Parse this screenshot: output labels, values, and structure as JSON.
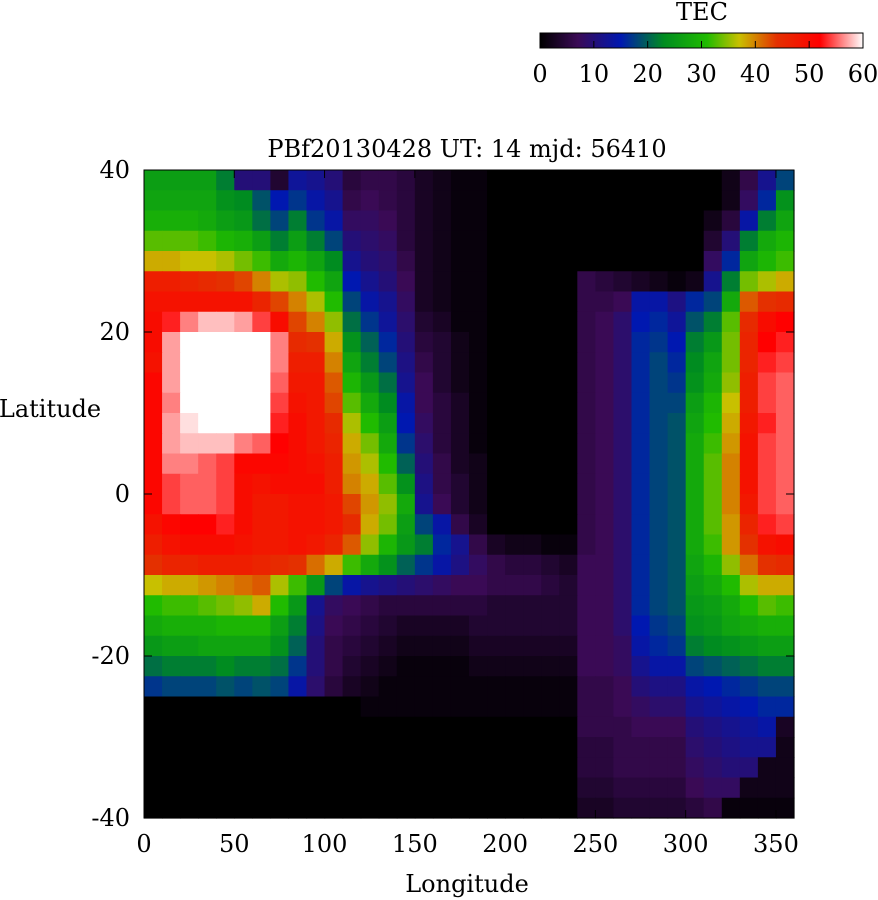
{
  "chart_data": {
    "type": "heatmap",
    "title": "PBf20130428  UT: 14  mjd: 56410",
    "xlabel": "Longitude",
    "ylabel": "Latitude",
    "xlim": [
      0,
      360
    ],
    "ylim": [
      -40,
      40
    ],
    "xticks": [
      "0",
      "50",
      "100",
      "150",
      "200",
      "250",
      "300",
      "350"
    ],
    "yticks": [
      "40",
      "20",
      "0",
      "-20",
      "-40"
    ],
    "colorbar": {
      "label": "TEC",
      "range": [
        0,
        60
      ],
      "ticks": [
        "0",
        "10",
        "20",
        "30",
        "40",
        "50",
        "60"
      ],
      "stops": [
        {
          "value": 0,
          "color": "#000000"
        },
        {
          "value": 7,
          "color": "#3a0a55"
        },
        {
          "value": 15,
          "color": "#0018b0"
        },
        {
          "value": 23,
          "color": "#008c20"
        },
        {
          "value": 31,
          "color": "#20bb00"
        },
        {
          "value": 37,
          "color": "#c8c000"
        },
        {
          "value": 44,
          "color": "#e43000"
        },
        {
          "value": 52,
          "color": "#ff0000"
        },
        {
          "value": 60,
          "color": "#ffffff"
        }
      ]
    },
    "grid": {
      "lon_step": 10,
      "lat_step": 2.5,
      "lon_centers": [
        5,
        15,
        25,
        35,
        45,
        55,
        65,
        75,
        85,
        95,
        105,
        115,
        125,
        135,
        145,
        155,
        165,
        175,
        185,
        195,
        205,
        215,
        225,
        235,
        245,
        255,
        265,
        275,
        285,
        295,
        305,
        315,
        325,
        335,
        345,
        355
      ],
      "lat_centers": [
        38.75,
        36.25,
        33.75,
        31.25,
        28.75,
        26.25,
        23.75,
        21.25,
        18.75,
        16.25,
        13.75,
        11.25,
        8.75,
        6.25,
        3.75,
        1.25,
        -1.25,
        -3.75,
        -6.25,
        -8.75,
        -11.25,
        -13.75,
        -16.25,
        -18.75,
        -21.25,
        -23.75,
        -26.25,
        -28.75,
        -31.25,
        -33.75,
        -36.25,
        -38.75
      ],
      "tec": [
        [
          26,
          26,
          26,
          26,
          22,
          10,
          10,
          4,
          13,
          12,
          10,
          5,
          6,
          6,
          5,
          3,
          2,
          1,
          1,
          0,
          0,
          0,
          0,
          0,
          0,
          0,
          0,
          0,
          0,
          0,
          0,
          0,
          2,
          6,
          12,
          18
        ],
        [
          27,
          27,
          27,
          27,
          24,
          23,
          19,
          15,
          17,
          14,
          12,
          6,
          7,
          6,
          5,
          3,
          2,
          1,
          1,
          0,
          0,
          0,
          0,
          0,
          0,
          0,
          0,
          0,
          0,
          0,
          0,
          0,
          2,
          8,
          16,
          24
        ],
        [
          29,
          29,
          29,
          28,
          26,
          25,
          21,
          18,
          22,
          17,
          14,
          8,
          8,
          7,
          5,
          3,
          2,
          1,
          1,
          0,
          0,
          0,
          0,
          0,
          0,
          0,
          0,
          0,
          0,
          0,
          0,
          2,
          5,
          14,
          22,
          27
        ],
        [
          33,
          33,
          33,
          32,
          30,
          29,
          26,
          22,
          26,
          22,
          18,
          10,
          9,
          8,
          5,
          3,
          2,
          1,
          1,
          0,
          0,
          0,
          0,
          0,
          0,
          0,
          0,
          0,
          0,
          0,
          0,
          4,
          10,
          22,
          28,
          30
        ],
        [
          38,
          38,
          37,
          37,
          36,
          34,
          32,
          28,
          30,
          27,
          23,
          12,
          10,
          9,
          6,
          3,
          2,
          1,
          1,
          0,
          0,
          0,
          0,
          0,
          0,
          0,
          0,
          0,
          0,
          0,
          0,
          8,
          16,
          27,
          30,
          32
        ],
        [
          47,
          47,
          46,
          45,
          44,
          43,
          40,
          36,
          35,
          31,
          27,
          15,
          12,
          10,
          7,
          3,
          2,
          1,
          1,
          0,
          0,
          0,
          0,
          0,
          6,
          5,
          4,
          3,
          2,
          1,
          2,
          12,
          22,
          34,
          36,
          38
        ],
        [
          49,
          49,
          49,
          49,
          49,
          49,
          46,
          43,
          40,
          36,
          31,
          18,
          14,
          12,
          8,
          3,
          2,
          1,
          1,
          0,
          0,
          0,
          0,
          0,
          6,
          6,
          7,
          14,
          14,
          11,
          16,
          18,
          28,
          42,
          44,
          45
        ],
        [
          50,
          53,
          56,
          58,
          58,
          57,
          54,
          50,
          43,
          40,
          35,
          21,
          17,
          13,
          9,
          4,
          3,
          1,
          1,
          0,
          0,
          0,
          0,
          0,
          6,
          7,
          9,
          15,
          16,
          13,
          19,
          22,
          33,
          45,
          50,
          52
        ],
        [
          50,
          57,
          60,
          60,
          60,
          60,
          60,
          56,
          45,
          44,
          38,
          24,
          20,
          16,
          10,
          5,
          4,
          2,
          1,
          0,
          0,
          0,
          0,
          0,
          6,
          7,
          9,
          16,
          17,
          15,
          22,
          25,
          34,
          46,
          52,
          53
        ],
        [
          49,
          57,
          60,
          60,
          60,
          60,
          60,
          56,
          47,
          47,
          40,
          27,
          22,
          18,
          11,
          6,
          4,
          2,
          1,
          0,
          0,
          0,
          0,
          0,
          6,
          7,
          9,
          16,
          18,
          16,
          23,
          27,
          34,
          46,
          53,
          54
        ],
        [
          51,
          57,
          60,
          60,
          60,
          60,
          60,
          55,
          48,
          48,
          42,
          30,
          25,
          21,
          12,
          7,
          4,
          2,
          1,
          0,
          0,
          0,
          0,
          0,
          6,
          7,
          9,
          16,
          18,
          17,
          24,
          28,
          35,
          47,
          54,
          55
        ],
        [
          51,
          56,
          60,
          60,
          60,
          60,
          60,
          54,
          49,
          48,
          43,
          33,
          28,
          23,
          14,
          7,
          5,
          3,
          1,
          0,
          0,
          0,
          0,
          0,
          6,
          7,
          9,
          16,
          18,
          18,
          26,
          30,
          37,
          47,
          54,
          55
        ],
        [
          51,
          57,
          59,
          60,
          60,
          60,
          60,
          53,
          50,
          48,
          45,
          36,
          31,
          26,
          15,
          8,
          5,
          3,
          1,
          0,
          0,
          0,
          0,
          0,
          6,
          7,
          9,
          16,
          18,
          19,
          27,
          31,
          38,
          48,
          53,
          55
        ],
        [
          51,
          57,
          58,
          58,
          58,
          56,
          55,
          52,
          50,
          48,
          46,
          38,
          34,
          28,
          17,
          9,
          5,
          3,
          1,
          0,
          0,
          0,
          0,
          0,
          6,
          7,
          9,
          16,
          18,
          19,
          28,
          32,
          39,
          49,
          54,
          55
        ],
        [
          51,
          56,
          56,
          55,
          54,
          51,
          51,
          51,
          50,
          49,
          47,
          39,
          36,
          31,
          20,
          10,
          6,
          3,
          2,
          0,
          0,
          0,
          0,
          0,
          6,
          7,
          9,
          16,
          18,
          19,
          28,
          33,
          40,
          49,
          54,
          55
        ],
        [
          51,
          54,
          55,
          55,
          54,
          50,
          49,
          50,
          50,
          50,
          47,
          40,
          38,
          33,
          24,
          11,
          6,
          4,
          2,
          0,
          0,
          0,
          0,
          0,
          6,
          7,
          9,
          16,
          18,
          19,
          28,
          33,
          40,
          49,
          54,
          55
        ],
        [
          51,
          54,
          55,
          55,
          54,
          50,
          48,
          48,
          49,
          49,
          48,
          43,
          39,
          35,
          28,
          12,
          7,
          4,
          2,
          0,
          0,
          0,
          0,
          0,
          6,
          7,
          9,
          16,
          18,
          19,
          28,
          33,
          40,
          48,
          54,
          55
        ],
        [
          49,
          51,
          52,
          52,
          53,
          50,
          48,
          48,
          49,
          49,
          48,
          45,
          38,
          34,
          26,
          18,
          14,
          6,
          3,
          0,
          0,
          0,
          0,
          0,
          6,
          7,
          9,
          16,
          18,
          19,
          28,
          33,
          39,
          46,
          53,
          54
        ],
        [
          47,
          49,
          50,
          50,
          50,
          49,
          48,
          48,
          49,
          48,
          46,
          42,
          35,
          30,
          25,
          22,
          16,
          12,
          6,
          3,
          2,
          2,
          1,
          1,
          6,
          7,
          9,
          16,
          18,
          19,
          28,
          32,
          39,
          44,
          49,
          50
        ],
        [
          44,
          46,
          46,
          47,
          47,
          47,
          46,
          45,
          44,
          41,
          38,
          32,
          28,
          24,
          20,
          17,
          14,
          11,
          8,
          6,
          5,
          5,
          4,
          3,
          7,
          7,
          9,
          16,
          18,
          19,
          27,
          30,
          35,
          41,
          44,
          45
        ],
        [
          37,
          38,
          38,
          39,
          40,
          41,
          42,
          36,
          32,
          25,
          18,
          14,
          12,
          11,
          10,
          9,
          8,
          7,
          7,
          6,
          6,
          6,
          5,
          4,
          7,
          7,
          9,
          16,
          18,
          19,
          26,
          28,
          31,
          36,
          38,
          38
        ],
        [
          31,
          32,
          32,
          33,
          34,
          35,
          38,
          31,
          25,
          12,
          8,
          7,
          6,
          5,
          5,
          5,
          5,
          5,
          5,
          4,
          4,
          4,
          4,
          4,
          7,
          7,
          9,
          16,
          18,
          19,
          25,
          26,
          28,
          31,
          33,
          32
        ],
        [
          28,
          29,
          29,
          29,
          30,
          30,
          30,
          26,
          22,
          11,
          7,
          6,
          5,
          4,
          3,
          3,
          3,
          3,
          4,
          4,
          4,
          4,
          4,
          4,
          7,
          7,
          9,
          15,
          17,
          18,
          24,
          25,
          27,
          28,
          29,
          29
        ],
        [
          25,
          26,
          26,
          27,
          27,
          27,
          27,
          24,
          20,
          10,
          6,
          5,
          4,
          3,
          2,
          2,
          2,
          2,
          3,
          3,
          3,
          3,
          3,
          3,
          7,
          7,
          8,
          14,
          16,
          17,
          22,
          23,
          24,
          25,
          26,
          26
        ],
        [
          21,
          22,
          22,
          22,
          23,
          22,
          22,
          21,
          17,
          10,
          6,
          4,
          3,
          2,
          1,
          1,
          1,
          1,
          2,
          2,
          2,
          2,
          2,
          2,
          7,
          7,
          8,
          12,
          14,
          14,
          18,
          19,
          20,
          21,
          22,
          22
        ],
        [
          17,
          18,
          18,
          18,
          19,
          18,
          19,
          18,
          14,
          9,
          5,
          3,
          2,
          1,
          1,
          1,
          1,
          1,
          1,
          1,
          1,
          1,
          1,
          1,
          6,
          6,
          7,
          10,
          11,
          11,
          14,
          15,
          16,
          17,
          18,
          18
        ],
        [
          0,
          0,
          0,
          0,
          0,
          0,
          0,
          0,
          0,
          0,
          0,
          0,
          1,
          1,
          1,
          1,
          1,
          1,
          1,
          1,
          1,
          1,
          1,
          1,
          6,
          6,
          7,
          8,
          9,
          9,
          12,
          13,
          14,
          15,
          16,
          16
        ],
        [
          0,
          0,
          0,
          0,
          0,
          0,
          0,
          0,
          0,
          0,
          0,
          0,
          0,
          0,
          0,
          0,
          0,
          0,
          0,
          0,
          0,
          0,
          0,
          0,
          6,
          6,
          6,
          7,
          7,
          7,
          10,
          11,
          12,
          13,
          14,
          3
        ],
        [
          0,
          0,
          0,
          0,
          0,
          0,
          0,
          0,
          0,
          0,
          0,
          0,
          0,
          0,
          0,
          0,
          0,
          0,
          0,
          0,
          0,
          0,
          0,
          0,
          5,
          5,
          6,
          6,
          6,
          6,
          9,
          10,
          11,
          12,
          12,
          2
        ],
        [
          0,
          0,
          0,
          0,
          0,
          0,
          0,
          0,
          0,
          0,
          0,
          0,
          0,
          0,
          0,
          0,
          0,
          0,
          0,
          0,
          0,
          0,
          0,
          0,
          5,
          5,
          6,
          6,
          6,
          6,
          8,
          9,
          10,
          10,
          2,
          2
        ],
        [
          0,
          0,
          0,
          0,
          0,
          0,
          0,
          0,
          0,
          0,
          0,
          0,
          0,
          0,
          0,
          0,
          0,
          0,
          0,
          0,
          0,
          0,
          0,
          0,
          4,
          4,
          5,
          5,
          5,
          5,
          7,
          8,
          8,
          2,
          2,
          2
        ],
        [
          0,
          0,
          0,
          0,
          0,
          0,
          0,
          0,
          0,
          0,
          0,
          0,
          0,
          0,
          0,
          0,
          0,
          0,
          0,
          0,
          0,
          0,
          0,
          0,
          3,
          3,
          4,
          4,
          4,
          4,
          5,
          6,
          1,
          1,
          1,
          1
        ]
      ]
    }
  }
}
